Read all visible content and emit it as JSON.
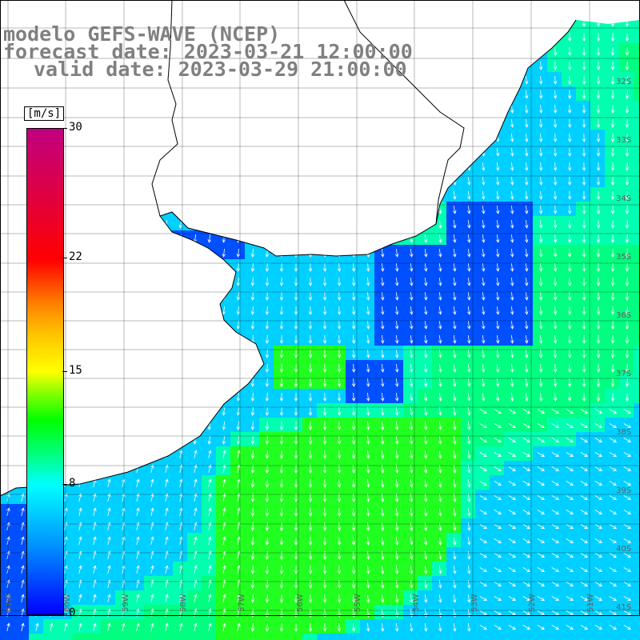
{
  "title": {
    "line1": "modelo GEFS-WAVE (NCEP)",
    "line2": "forecast date: 2023-03-21 12:00:00",
    "line3": "valid date: 2023-03-29 21:00:00"
  },
  "colorbar": {
    "unit": "[m/s]",
    "ticks": [
      "30",
      "22",
      "15",
      "8",
      "0"
    ],
    "tick_values": [
      30,
      22,
      15,
      8,
      0
    ]
  },
  "lat_labels": [
    "32S",
    "33S",
    "34S",
    "35S",
    "36S",
    "37S",
    "38S",
    "39S",
    "40S",
    "41S"
  ],
  "lon_labels": [
    "61W",
    "60W",
    "59W",
    "58W",
    "57W",
    "56W",
    "55W",
    "54W",
    "53W",
    "52W",
    "51W"
  ],
  "colors": {
    "land": "#ffffff",
    "calm": "#0050ff",
    "light": "#00d0ff",
    "moderate": "#00ff80",
    "strong": "#20ff20",
    "coast": "#000000",
    "grid": "#000000",
    "arrow": "#ffffff"
  }
}
